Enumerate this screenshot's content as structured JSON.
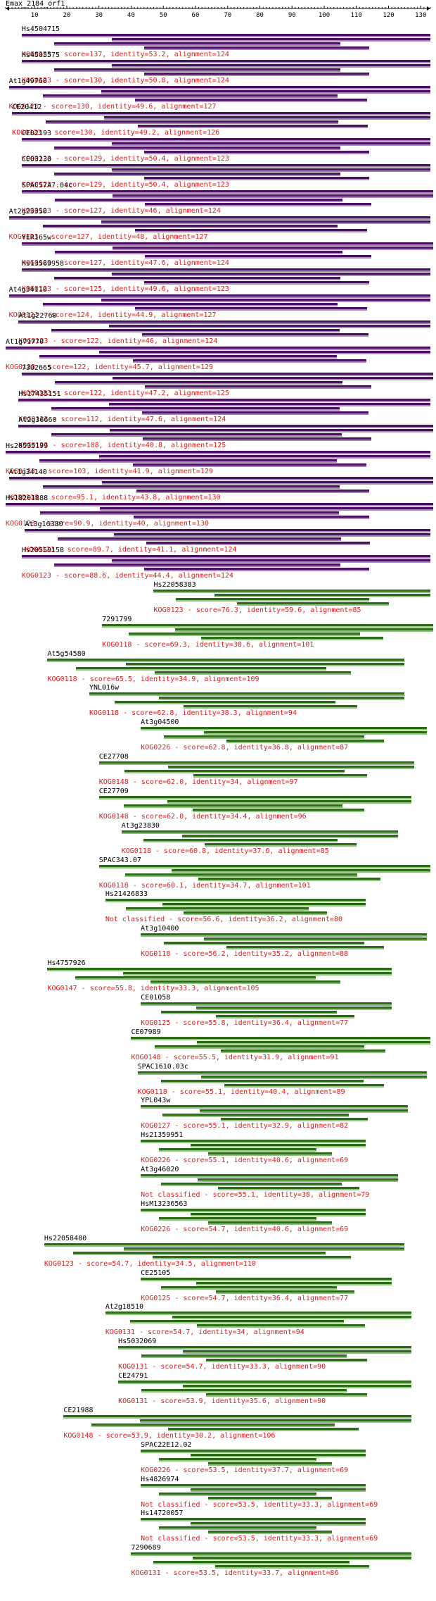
{
  "query": {
    "title": "Emax_2184_orf1",
    "ruler": {
      "min": 1,
      "max": 133,
      "ticks": [
        10,
        20,
        30,
        40,
        50,
        60,
        70,
        80,
        90,
        100,
        110,
        120,
        130
      ]
    }
  },
  "colors": {
    "purple_bar": "#4b0f63",
    "green_bar": "#2f6a1a",
    "summary_text": "#d42020"
  },
  "hits": [
    {
      "name": "Hs4504715",
      "summary": "KOG0123 - score=137, identity=53.2, alignment=124",
      "start": 6,
      "end": 133,
      "color": "purple"
    },
    {
      "name": "Hs4505575",
      "summary": "KOG0123 - score=130, identity=50.8, alignment=124",
      "start": 6,
      "end": 133,
      "color": "purple"
    },
    {
      "name": "At1g49760",
      "summary": "KOG0123 - score=130, identity=49.6, alignment=127",
      "start": 2,
      "end": 133,
      "color": "purple"
    },
    {
      "name": "CE20412",
      "summary": "KOG0123 - score=130, identity=49.2, alignment=126",
      "start": 3,
      "end": 133,
      "color": "purple"
    },
    {
      "name": "CE02193",
      "summary": "KOG0123 - score=129, identity=50.4, alignment=123",
      "start": 6,
      "end": 133,
      "color": "purple"
    },
    {
      "name": "CE03230",
      "summary": "KOG0123 - score=129, identity=50.4, alignment=123",
      "start": 6,
      "end": 133,
      "color": "purple"
    },
    {
      "name": "SPAC57A7.04c",
      "summary": "KOG0123 - score=127, identity=46, alignment=124",
      "start": 6,
      "end": 134,
      "color": "purple"
    },
    {
      "name": "At2g23350",
      "summary": "KOG0123 - score=127, identity=48, alignment=127",
      "start": 2,
      "end": 133,
      "color": "purple"
    },
    {
      "name": "YER165w",
      "summary": "KOG0123 - score=127, identity=47.6, alignment=124",
      "start": 6,
      "end": 134,
      "color": "purple"
    },
    {
      "name": "Hs13569958",
      "summary": "KOG0123 - score=125, identity=49.6, alignment=123",
      "start": 6,
      "end": 133,
      "color": "purple"
    },
    {
      "name": "At4g34110",
      "summary": "KOG0123 - score=124, identity=44.9, alignment=127",
      "start": 2,
      "end": 133,
      "color": "purple"
    },
    {
      "name": "At1g22760",
      "summary": "KOG0123 - score=122, identity=46, alignment=124",
      "start": 5,
      "end": 133,
      "color": "purple"
    },
    {
      "name": "At1g71770",
      "summary": "KOG0123 - score=122, identity=45.7, alignment=129",
      "start": 1,
      "end": 133,
      "color": "purple"
    },
    {
      "name": "7302665",
      "summary": "KOG0123 - score=122, identity=47.2, alignment=125",
      "start": 6,
      "end": 135,
      "color": "purple"
    },
    {
      "name": "Hs17435151",
      "summary": "KOG0123 - score=112, identity=47.6, alignment=124",
      "start": 5,
      "end": 133,
      "color": "purple"
    },
    {
      "name": "At2g36660",
      "summary": "KOG0123 - score=108, identity=40.8, alignment=125",
      "start": 5,
      "end": 134,
      "color": "purple"
    },
    {
      "name": "Hs20535199",
      "summary": "KOG0123 - score=103, identity=41.9, alignment=129",
      "start": 1,
      "end": 133,
      "color": "purple"
    },
    {
      "name": "At1g34140",
      "summary": "KOG0118 - score=95.1, identity=43.8, alignment=130",
      "start": 2,
      "end": 136,
      "color": "purple"
    },
    {
      "name": "Hs18201888",
      "summary": "KOG0123 - score=90.9, identity=40, alignment=130",
      "start": 1,
      "end": 134,
      "color": "purple"
    },
    {
      "name": "At3g16380",
      "summary": "KOG0123 - score=89.7, identity=41.1, alignment=124",
      "start": 7,
      "end": 133,
      "color": "purple"
    },
    {
      "name": "Hs20559158",
      "summary": "KOG0123 - score=88.6, identity=44.4, alignment=124",
      "start": 6,
      "end": 133,
      "color": "purple"
    },
    {
      "name": "Hs22058383",
      "summary": "KOG0123 - score=76.3, identity=59.6, alignment=85",
      "start": 47,
      "end": 133,
      "color": "green"
    },
    {
      "name": "7291799",
      "summary": "KOG0118 - score=69.3, identity=38.6, alignment=101",
      "start": 31,
      "end": 135,
      "color": "green"
    },
    {
      "name": "At5g54580",
      "summary": "KOG0118 - score=65.5, identity=34.9, alignment=109",
      "start": 14,
      "end": 125,
      "color": "green"
    },
    {
      "name": "YNL016w",
      "summary": "KOG0118 - score=62.8, identity=38.3, alignment=94",
      "start": 27,
      "end": 125,
      "color": "green"
    },
    {
      "name": "At3g04500",
      "summary": "KOG0226 - score=62.8, identity=36.8, alignment=87",
      "start": 43,
      "end": 132,
      "color": "green"
    },
    {
      "name": "CE27708",
      "summary": "KOG0148 - score=62.0, identity=34, alignment=97",
      "start": 30,
      "end": 128,
      "color": "green"
    },
    {
      "name": "CE27709",
      "summary": "KOG0148 - score=62.0, identity=34.4, alignment=96",
      "start": 30,
      "end": 127,
      "color": "green"
    },
    {
      "name": "At3g23830",
      "summary": "KOG0118 - score=60.8, identity=37.6, alignment=85",
      "start": 37,
      "end": 123,
      "color": "green"
    },
    {
      "name": "SPAC343.07",
      "summary": "KOG0118 - score=60.1, identity=34.7, alignment=101",
      "start": 30,
      "end": 133,
      "color": "green"
    },
    {
      "name": "Hs21426833",
      "summary": "Not classified - score=56.6, identity=36.2, alignment=80",
      "start": 32,
      "end": 113,
      "color": "green"
    },
    {
      "name": "At3g10400",
      "summary": "KOG0118 - score=56.2, identity=35.2, alignment=88",
      "start": 43,
      "end": 132,
      "color": "green"
    },
    {
      "name": "Hs4757926",
      "summary": "KOG0147 - score=55.8, identity=33.3, alignment=105",
      "start": 14,
      "end": 121,
      "color": "green"
    },
    {
      "name": "CE01058",
      "summary": "KOG0125 - score=55.8, identity=36.4, alignment=77",
      "start": 43,
      "end": 121,
      "color": "green"
    },
    {
      "name": "CE07989",
      "summary": "KOG0148 - score=55.5, identity=31.9, alignment=91",
      "start": 40,
      "end": 133,
      "color": "green"
    },
    {
      "name": "SPAC1610.03c",
      "summary": "KOG0118 - score=55.1, identity=40.4, alignment=89",
      "start": 42,
      "end": 132,
      "color": "green"
    },
    {
      "name": "YPL043w",
      "summary": "KOG0127 - score=55.1, identity=32.9, alignment=82",
      "start": 43,
      "end": 126,
      "color": "green"
    },
    {
      "name": "Hs21359951",
      "summary": "KOG0226 - score=55.1, identity=40.6, alignment=69",
      "start": 43,
      "end": 113,
      "color": "green"
    },
    {
      "name": "At3g46020",
      "summary": "Not classified - score=55.1, identity=38, alignment=79",
      "start": 43,
      "end": 123,
      "color": "green"
    },
    {
      "name": "HsM13236563",
      "summary": "KOG0226 - score=54.7, identity=40.6, alignment=69",
      "start": 43,
      "end": 113,
      "color": "green"
    },
    {
      "name": "Hs22058480",
      "summary": "KOG0123 - score=54.7, identity=34.5, alignment=110",
      "start": 13,
      "end": 125,
      "color": "green"
    },
    {
      "name": "CE25105",
      "summary": "KOG0125 - score=54.7, identity=36.4, alignment=77",
      "start": 43,
      "end": 121,
      "color": "green"
    },
    {
      "name": "At2g18510",
      "summary": "KOG0131 - score=54.7, identity=34, alignment=94",
      "start": 32,
      "end": 127,
      "color": "green"
    },
    {
      "name": "Hs5032069",
      "summary": "KOG0131 - score=54.7, identity=33.3, alignment=90",
      "start": 36,
      "end": 127,
      "color": "green"
    },
    {
      "name": "CE24791",
      "summary": "KOG0131 - score=53.9, identity=35.6, alignment=90",
      "start": 36,
      "end": 127,
      "color": "green"
    },
    {
      "name": "CE21988",
      "summary": "KOG0148 - score=53.9, identity=30.2, alignment=106",
      "start": 19,
      "end": 127,
      "color": "green"
    },
    {
      "name": "SPAC22E12.02",
      "summary": "KOG0226 - score=53.5, identity=37.7, alignment=69",
      "start": 43,
      "end": 113,
      "color": "green"
    },
    {
      "name": "Hs4826974",
      "summary": "Not classified - score=53.5, identity=33.3, alignment=69",
      "start": 43,
      "end": 113,
      "color": "green"
    },
    {
      "name": "Hs14720057",
      "summary": "Not classified - score=53.5, identity=33.3, alignment=69",
      "start": 43,
      "end": 113,
      "color": "green"
    },
    {
      "name": "7290689",
      "summary": "KOG0131 - score=53.5, identity=33.7, alignment=86",
      "start": 40,
      "end": 127,
      "color": "green"
    }
  ]
}
